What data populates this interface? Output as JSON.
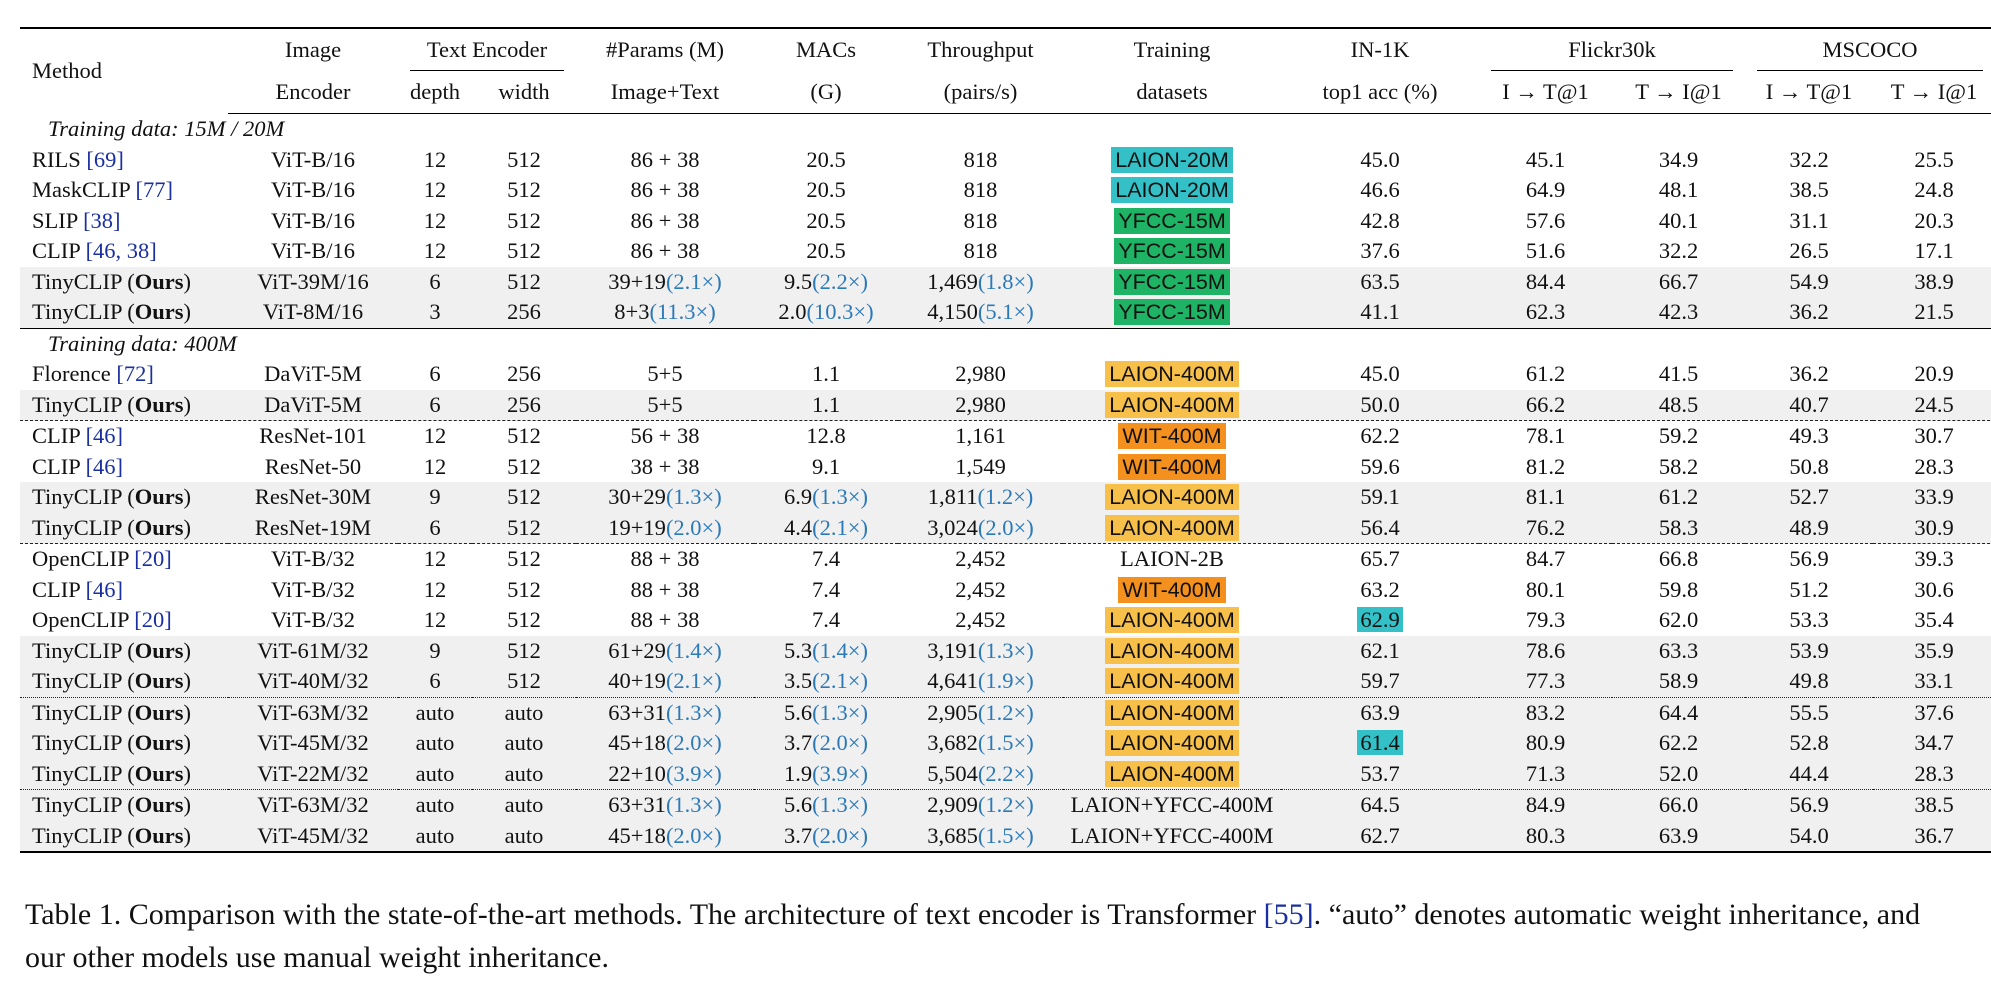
{
  "header": {
    "method": "Method",
    "image_encoder_1": "Image",
    "image_encoder_2": "Encoder",
    "text_encoder": "Text Encoder",
    "depth": "depth",
    "width": "width",
    "params_1": "#Params (M)",
    "params_2": "Image+Text",
    "macs_1": "MACs",
    "macs_2": "(G)",
    "throughput_1": "Throughput",
    "throughput_2": "(pairs/s)",
    "training_1": "Training",
    "training_2": "datasets",
    "in1k_1": "IN-1K",
    "in1k_2": "top1 acc (%)",
    "flickr": "Flickr30k",
    "mscoco": "MSCOCO",
    "i2t": "I → T@1",
    "t2i": "T → I@1"
  },
  "sections": {
    "s1": "Training data: 15M / 20M",
    "s2": "Training data: 400M"
  },
  "rows": [
    {
      "m": "RILS ",
      "ref": "[69]",
      "enc": "ViT-B/16",
      "d": "12",
      "w": "512",
      "p": "86 + 38",
      "mac": "20.5",
      "tp": "818",
      "ds": "LAION-20M",
      "in": "45.0",
      "f1": "45.1",
      "f2": "34.9",
      "c1": "32.2",
      "c2": "25.5"
    },
    {
      "m": "MaskCLIP ",
      "ref": "[77]",
      "enc": "ViT-B/16",
      "d": "12",
      "w": "512",
      "p": "86 + 38",
      "mac": "20.5",
      "tp": "818",
      "ds": "LAION-20M",
      "in": "46.6",
      "f1": "64.9",
      "f2": "48.1",
      "c1": "38.5",
      "c2": "24.8"
    },
    {
      "m": "SLIP ",
      "ref": "[38]",
      "enc": "ViT-B/16",
      "d": "12",
      "w": "512",
      "p": "86 + 38",
      "mac": "20.5",
      "tp": "818",
      "ds": "YFCC-15M",
      "in": "42.8",
      "f1": "57.6",
      "f2": "40.1",
      "c1": "31.1",
      "c2": "20.3"
    },
    {
      "m": "CLIP ",
      "ref": "[46, 38]",
      "enc": "ViT-B/16",
      "d": "12",
      "w": "512",
      "p": "86 + 38",
      "mac": "20.5",
      "tp": "818",
      "ds": "YFCC-15M",
      "in": "37.6",
      "f1": "51.6",
      "f2": "32.2",
      "c1": "26.5",
      "c2": "17.1"
    },
    {
      "m": "TinyCLIP (",
      "ours": "Ours",
      "m2": ")",
      "enc": "ViT-39M/16",
      "d": "6",
      "w": "512",
      "p": "39+19",
      "pr": "(2.1×)",
      "mac": "9.5",
      "macr": "(2.2×)",
      "tp": "1,469",
      "tpr": "(1.8×)",
      "ds": "YFCC-15M",
      "in": "63.5",
      "f1": "84.4",
      "f2": "66.7",
      "c1": "54.9",
      "c2": "38.9"
    },
    {
      "m": "TinyCLIP (",
      "ours": "Ours",
      "m2": ")",
      "enc": "ViT-8M/16",
      "d": "3",
      "w": "256",
      "p": "8+3",
      "pr": "(11.3×)",
      "mac": "2.0",
      "macr": "(10.3×)",
      "tp": "4,150",
      "tpr": "(5.1×)",
      "ds": "YFCC-15M",
      "in": "41.1",
      "f1": "62.3",
      "f2": "42.3",
      "c1": "36.2",
      "c2": "21.5"
    },
    {
      "m": "Florence ",
      "ref": "[72]",
      "enc": "DaViT-5M",
      "d": "6",
      "w": "256",
      "p": "5+5",
      "mac": "1.1",
      "tp": "2,980",
      "ds": "LAION-400M",
      "in": "45.0",
      "f1": "61.2",
      "f2": "41.5",
      "c1": "36.2",
      "c2": "20.9"
    },
    {
      "m": "TinyCLIP (",
      "ours": "Ours",
      "m2": ")",
      "enc": "DaViT-5M",
      "d": "6",
      "w": "256",
      "p": "5+5",
      "mac": "1.1",
      "tp": "2,980",
      "ds": "LAION-400M",
      "in": "50.0",
      "f1": "66.2",
      "f2": "48.5",
      "c1": "40.7",
      "c2": "24.5"
    },
    {
      "m": "CLIP ",
      "ref": "[46]",
      "enc": "ResNet-101",
      "d": "12",
      "w": "512",
      "p": "56 + 38",
      "mac": "12.8",
      "tp": "1,161",
      "ds": "WIT-400M",
      "in": "62.2",
      "f1": "78.1",
      "f2": "59.2",
      "c1": "49.3",
      "c2": "30.7"
    },
    {
      "m": "CLIP ",
      "ref": "[46]",
      "enc": "ResNet-50",
      "d": "12",
      "w": "512",
      "p": "38 + 38",
      "mac": "9.1",
      "tp": "1,549",
      "ds": "WIT-400M",
      "in": "59.6",
      "f1": "81.2",
      "f2": "58.2",
      "c1": "50.8",
      "c2": "28.3"
    },
    {
      "m": "TinyCLIP (",
      "ours": "Ours",
      "m2": ")",
      "enc": "ResNet-30M",
      "d": "9",
      "w": "512",
      "p": "30+29",
      "pr": "(1.3×)",
      "mac": "6.9",
      "macr": "(1.3×)",
      "tp": "1,811",
      "tpr": "(1.2×)",
      "ds": "LAION-400M",
      "in": "59.1",
      "f1": "81.1",
      "f2": "61.2",
      "c1": "52.7",
      "c2": "33.9"
    },
    {
      "m": "TinyCLIP (",
      "ours": "Ours",
      "m2": ")",
      "enc": "ResNet-19M",
      "d": "6",
      "w": "512",
      "p": "19+19",
      "pr": "(2.0×)",
      "mac": "4.4",
      "macr": "(2.1×)",
      "tp": "3,024",
      "tpr": "(2.0×)",
      "ds": "LAION-400M",
      "in": "56.4",
      "f1": "76.2",
      "f2": "58.3",
      "c1": "48.9",
      "c2": "30.9"
    },
    {
      "m": "OpenCLIP ",
      "ref": "[20]",
      "enc": "ViT-B/32",
      "d": "12",
      "w": "512",
      "p": "88 + 38",
      "mac": "7.4",
      "tp": "2,452",
      "ds": "LAION-2B",
      "in": "65.7",
      "f1": "84.7",
      "f2": "66.8",
      "c1": "56.9",
      "c2": "39.3"
    },
    {
      "m": "CLIP ",
      "ref": "[46]",
      "enc": "ViT-B/32",
      "d": "12",
      "w": "512",
      "p": "88 + 38",
      "mac": "7.4",
      "tp": "2,452",
      "ds": "WIT-400M",
      "in": "63.2",
      "f1": "80.1",
      "f2": "59.8",
      "c1": "51.2",
      "c2": "30.6"
    },
    {
      "m": "OpenCLIP ",
      "ref": "[20]",
      "enc": "ViT-B/32",
      "d": "12",
      "w": "512",
      "p": "88 + 38",
      "mac": "7.4",
      "tp": "2,452",
      "ds": "LAION-400M",
      "in": "62.9",
      "f1": "79.3",
      "f2": "62.0",
      "c1": "53.3",
      "c2": "35.4"
    },
    {
      "m": "TinyCLIP (",
      "ours": "Ours",
      "m2": ")",
      "enc": "ViT-61M/32",
      "d": "9",
      "w": "512",
      "p": "61+29",
      "pr": "(1.4×)",
      "mac": "5.3",
      "macr": "(1.4×)",
      "tp": "3,191",
      "tpr": "(1.3×)",
      "ds": "LAION-400M",
      "in": "62.1",
      "f1": "78.6",
      "f2": "63.3",
      "c1": "53.9",
      "c2": "35.9"
    },
    {
      "m": "TinyCLIP (",
      "ours": "Ours",
      "m2": ")",
      "enc": "ViT-40M/32",
      "d": "6",
      "w": "512",
      "p": "40+19",
      "pr": "(2.1×)",
      "mac": "3.5",
      "macr": "(2.1×)",
      "tp": "4,641",
      "tpr": "(1.9×)",
      "ds": "LAION-400M",
      "in": "59.7",
      "f1": "77.3",
      "f2": "58.9",
      "c1": "49.8",
      "c2": "33.1"
    },
    {
      "m": "TinyCLIP (",
      "ours": "Ours",
      "m2": ")",
      "enc": "ViT-63M/32",
      "d": "auto",
      "w": "auto",
      "p": "63+31",
      "pr": "(1.3×)",
      "mac": "5.6",
      "macr": "(1.3×)",
      "tp": "2,905",
      "tpr": "(1.2×)",
      "ds": "LAION-400M",
      "in": "63.9",
      "f1": "83.2",
      "f2": "64.4",
      "c1": "55.5",
      "c2": "37.6"
    },
    {
      "m": "TinyCLIP (",
      "ours": "Ours",
      "m2": ")",
      "enc": "ViT-45M/32",
      "d": "auto",
      "w": "auto",
      "p": "45+18",
      "pr": "(2.0×)",
      "mac": "3.7",
      "macr": "(2.0×)",
      "tp": "3,682",
      "tpr": "(1.5×)",
      "ds": "LAION-400M",
      "in": "61.4",
      "f1": "80.9",
      "f2": "62.2",
      "c1": "52.8",
      "c2": "34.7"
    },
    {
      "m": "TinyCLIP (",
      "ours": "Ours",
      "m2": ")",
      "enc": "ViT-22M/32",
      "d": "auto",
      "w": "auto",
      "p": "22+10",
      "pr": "(3.9×)",
      "mac": "1.9",
      "macr": "(3.9×)",
      "tp": "5,504",
      "tpr": "(2.2×)",
      "ds": "LAION-400M",
      "in": "53.7",
      "f1": "71.3",
      "f2": "52.0",
      "c1": "44.4",
      "c2": "28.3"
    },
    {
      "m": "TinyCLIP (",
      "ours": "Ours",
      "m2": ")",
      "enc": "ViT-63M/32",
      "d": "auto",
      "w": "auto",
      "p": "63+31",
      "pr": "(1.3×)",
      "mac": "5.6",
      "macr": "(1.3×)",
      "tp": "2,909",
      "tpr": "(1.2×)",
      "ds": "LAION+YFCC-400M",
      "in": "64.5",
      "f1": "84.9",
      "f2": "66.0",
      "c1": "56.9",
      "c2": "38.5"
    },
    {
      "m": "TinyCLIP (",
      "ours": "Ours",
      "m2": ")",
      "enc": "ViT-45M/32",
      "d": "auto",
      "w": "auto",
      "p": "45+18",
      "pr": "(2.0×)",
      "mac": "3.7",
      "macr": "(2.0×)",
      "tp": "3,685",
      "tpr": "(1.5×)",
      "ds": "LAION+YFCC-400M",
      "in": "62.7",
      "f1": "80.3",
      "f2": "63.9",
      "c1": "54.0",
      "c2": "36.7"
    }
  ],
  "caption": {
    "pre": "Table 1. Comparison with the state-of-the-art methods.  The architecture of text encoder is Transformer ",
    "ref": "[55]",
    "post": ".  “auto” denotes automatic weight inheritance, and our other models use manual weight inheritance."
  }
}
